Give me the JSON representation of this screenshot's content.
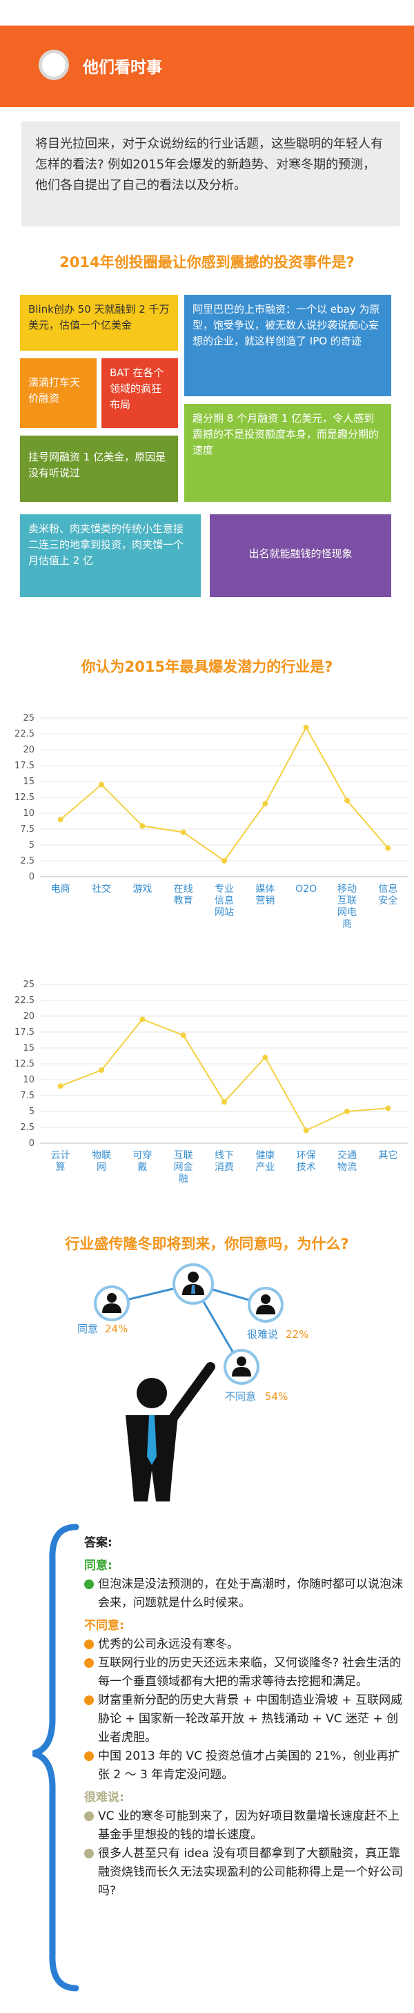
{
  "banner": {
    "title": "他们看时事"
  },
  "intro": {
    "text": "将目光拉回来，对于众说纷纭的行业话题，这些聪明的年轻人有怎样的看法? 例如2015年会爆发的新趋势、对寒冬期的预测，他们各自提出了自己的看法以及分析。"
  },
  "events": {
    "title": "2014年创投圈最让你感到震撼的投资事件是?",
    "tiles": [
      "Blink创办 50 天就融到 2 千万美元，估值一个亿美金",
      "阿里巴巴的上市融资：一个以 ebay 为原型，饱受争议，被无数人说抄袭说痴心妄想的企业，就这样创造了 IPO 的奇迹",
      "滴滴打车天价融资",
      "BAT 在各个领域的疯狂布局",
      "趣分期 8 个月融资 1 亿美元，令人感到震撼的不是投资额度本身，而是趣分期的速度",
      "挂号网融资 1 亿美金，原因是没有听说过",
      "卖米粉、肉夹馍类的传统小生意接二连三的地拿到投资，肉夹馍一个月估值上 2 亿",
      "出名就能融钱的怪现象"
    ]
  },
  "chart_data": [
    {
      "type": "line",
      "title": "你认为2015年最具爆发潜力的行业是?",
      "categories": [
        "电商",
        "社交",
        "游戏",
        "在线教育",
        "专业信息网站",
        "媒体营销",
        "O2O",
        "移动互联网电商",
        "信息安全"
      ],
      "values": [
        9,
        14.5,
        8,
        7,
        2.5,
        11.5,
        23.5,
        12,
        4.5
      ],
      "color": "#f4d03f",
      "ylim": [
        0,
        25
      ],
      "yticks": [
        0,
        2.5,
        5,
        7.5,
        10,
        12.5,
        15,
        17.5,
        20,
        22.5,
        25
      ],
      "grid": true
    },
    {
      "type": "line",
      "categories": [
        "云计算",
        "物联网",
        "可穿戴",
        "互联网金融",
        "线下消费",
        "健康产业",
        "环保技术",
        "交通物流",
        "其它"
      ],
      "values": [
        9,
        11.5,
        19.5,
        17,
        6.5,
        13.5,
        2,
        5,
        5.5
      ],
      "color": "#f4d03f",
      "ylim": [
        0,
        25
      ],
      "yticks": [
        0,
        2.5,
        5,
        7.5,
        10,
        12.5,
        15,
        17.5,
        20,
        22.5,
        25
      ],
      "grid": true
    }
  ],
  "poll": {
    "title": "行业盛传隆冬即将到来，你同意吗，为什么?",
    "options": [
      {
        "label": "同意",
        "value": "24%"
      },
      {
        "label": "很难说",
        "value": "22%"
      },
      {
        "label": "不同意",
        "value": "54%"
      }
    ]
  },
  "answers": {
    "title": "答案:",
    "groups": [
      {
        "label": "同意:",
        "color": "#3aa835",
        "items": [
          "但泡沫是没法预测的，在处于高潮时，你随时都可以说泡沫会来，问题就是什么时候来。"
        ]
      },
      {
        "label": "不同意:",
        "color": "#f39419",
        "items": [
          "优秀的公司永远没有寒冬。",
          "互联网行业的历史天还远未来临，又何谈隆冬? 社会生活的每一个垂直领域都有大把的需求等待去挖掘和满足。",
          "财富重新分配的历史大背景 + 中国制造业滑坡 + 互联网威胁论 + 国家新一轮改革开放 + 热钱涌动 + VC 迷茫 + 创业者虎胆。",
          "中国 2013 年的 VC 投资总值才占美国的 21%，创业再扩张 2 ～ 3 年肯定没问题。"
        ]
      },
      {
        "label": "很难说:",
        "color": "#b5b28a",
        "items": [
          "VC 业的寒冬可能到来了，因为好项目数量增长速度赶不上基金手里想投的钱的增长速度。",
          "很多人甚至只有 idea 没有项目都拿到了大额融资，真正靠融资烧钱而长久无法实现盈利的公司能称得上是一个好公司吗?"
        ]
      }
    ]
  }
}
